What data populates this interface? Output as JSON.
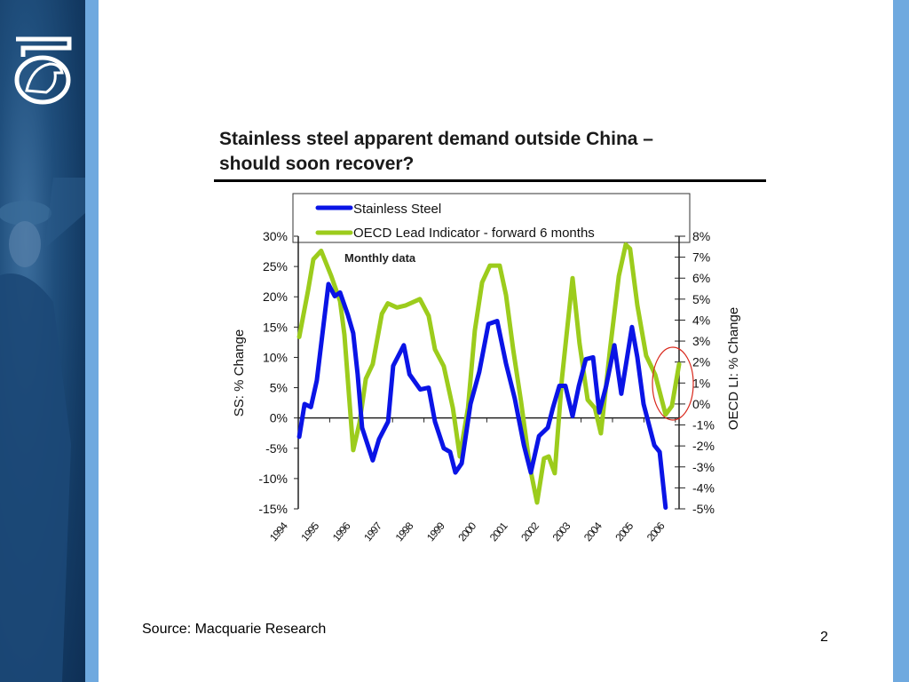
{
  "slide": {
    "title_line1": "Stainless steel apparent demand outside China –",
    "title_line2": "should soon recover?",
    "source": "Source: Macquarie Research",
    "page_number": "2",
    "logo_icon": "eagle-shield-logo"
  },
  "colors": {
    "stainless_steel": "#0a14e6",
    "oecd": "#9ccc1c",
    "highlight": "#d9281c",
    "panel_dark": "#143c66",
    "panel_light": "#6fa9df"
  },
  "chart_data": {
    "type": "line",
    "annotation": "Monthly data",
    "legend_position": "top",
    "x_ticks": [
      "1994",
      "1995",
      "1996",
      "1997",
      "1998",
      "1999",
      "2000",
      "2001",
      "2002",
      "2003",
      "2004",
      "2005",
      "2006"
    ],
    "xlim": [
      1994,
      2006.1
    ],
    "y_left": {
      "label": "SS: % Change",
      "lim": [
        -15,
        30
      ],
      "ticks": [
        "-15%",
        "-10%",
        "-5%",
        "0%",
        "5%",
        "10%",
        "15%",
        "20%",
        "25%",
        "30%"
      ]
    },
    "y_right": {
      "label": "OECD LI: % Change",
      "lim": [
        -5,
        8
      ],
      "ticks": [
        "-5%",
        "-4%",
        "-3%",
        "-2%",
        "-1%",
        "0%",
        "1%",
        "2%",
        "3%",
        "4%",
        "5%",
        "6%",
        "7%",
        "8%"
      ]
    },
    "grid": false,
    "series": [
      {
        "name": "Stainless Steel",
        "axis": "left",
        "x": [
          1994.03,
          1994.2,
          1994.4,
          1994.59,
          1994.76,
          1994.96,
          1995.16,
          1995.33,
          1995.58,
          1995.75,
          1995.89,
          1996.03,
          1996.37,
          1996.57,
          1996.86,
          1997.02,
          1997.36,
          1997.54,
          1997.88,
          1998.15,
          1998.35,
          1998.63,
          1998.83,
          1999.0,
          1999.2,
          1999.48,
          1999.76,
          2000.05,
          2000.33,
          2000.61,
          2000.89,
          2001.18,
          2001.4,
          2001.66,
          2001.94,
          2002.11,
          2002.31,
          2002.5,
          2002.73,
          2002.93,
          2003.15,
          2003.38,
          2003.58,
          2003.8,
          2004.06,
          2004.28,
          2004.62,
          2004.79,
          2004.99,
          2005.33,
          2005.5,
          2005.69
        ],
        "y": [
          -3.1,
          2.3,
          1.8,
          6.2,
          13.5,
          22.1,
          20.1,
          20.7,
          17,
          14,
          7.2,
          -1.6,
          -7,
          -3.5,
          -0.6,
          8.6,
          12,
          7.2,
          4.7,
          5,
          -0.6,
          -5,
          -5.6,
          -9,
          -7.5,
          2.3,
          7.6,
          15.5,
          16,
          9,
          3.2,
          -4.5,
          -9,
          -3,
          -1.6,
          1.8,
          5.3,
          5.3,
          0.3,
          5.3,
          9.7,
          10,
          0.9,
          5.3,
          12,
          4,
          15,
          10,
          2.3,
          -4.5,
          -5.6,
          -14.8
        ]
      },
      {
        "name": "OECD Lead Indicator - forward 6 months",
        "axis": "right",
        "x": [
          1994.03,
          1994.31,
          1994.48,
          1994.73,
          1995.05,
          1995.33,
          1995.47,
          1995.61,
          1995.75,
          1995.95,
          1996.15,
          1996.37,
          1996.66,
          1996.85,
          1997.14,
          1997.42,
          1997.87,
          1998.15,
          1998.35,
          1998.63,
          1998.92,
          1999.14,
          1999.4,
          1999.62,
          1999.85,
          2000.1,
          2000.41,
          2000.61,
          2000.84,
          2001.09,
          2001.37,
          2001.6,
          2001.82,
          2001.97,
          2002.16,
          2002.39,
          2002.73,
          2002.95,
          2003.21,
          2003.44,
          2003.63,
          2003.92,
          2004.2,
          2004.42,
          2004.56,
          2004.79,
          2005.07,
          2005.36,
          2005.69,
          2005.89,
          2006.12
        ],
        "y": [
          3.2,
          5.4,
          6.9,
          7.3,
          6.1,
          4.9,
          3.3,
          0.5,
          -2.2,
          -0.9,
          1.2,
          1.9,
          4.3,
          4.8,
          4.6,
          4.7,
          5.0,
          4.2,
          2.6,
          1.8,
          -0.2,
          -2.5,
          -0.2,
          3.5,
          5.8,
          6.6,
          6.6,
          5.2,
          2.6,
          0.1,
          -3.0,
          -4.7,
          -2.6,
          -2.5,
          -3.3,
          1.2,
          6.0,
          2.9,
          0.2,
          -0.2,
          -1.4,
          2.6,
          6.1,
          7.6,
          7.4,
          4.7,
          2.3,
          1.4,
          -0.5,
          -0.1,
          1.9
        ]
      }
    ]
  }
}
